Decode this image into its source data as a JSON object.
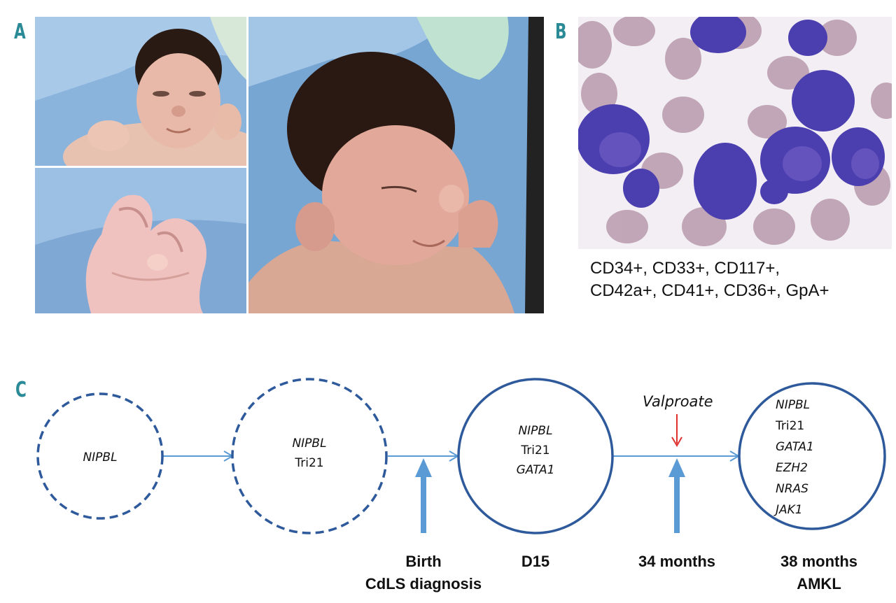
{
  "panels": {
    "a": "A",
    "b": "B",
    "c": "C"
  },
  "photo_a_top": "infant-face-photo",
  "photo_a_bottom": "infant-hand-photo",
  "photo_a_right": "infant-profile-photo",
  "photo_b": "bone-marrow-smear",
  "markers": {
    "line1": "CD34+, CD33+, CD117+,",
    "line2": "CD42a+, CD41+, CD36+, GpA+"
  },
  "timeline": {
    "circles": [
      {
        "style": "dashed",
        "lines": [
          {
            "text": "NIPBL",
            "italic": true
          }
        ]
      },
      {
        "style": "dashed",
        "lines": [
          {
            "text": "NIPBL",
            "italic": true
          },
          {
            "text": "Tri21",
            "italic": false
          }
        ]
      },
      {
        "style": "solid",
        "lines": [
          {
            "text": "NIPBL",
            "italic": true
          },
          {
            "text": "Tri21",
            "italic": false
          },
          {
            "text": "GATA1",
            "italic": true
          }
        ]
      },
      {
        "style": "solid",
        "lines": [
          {
            "text": "NIPBL",
            "italic": true
          },
          {
            "text": "Tri21",
            "italic": false
          },
          {
            "text": "GATA1",
            "italic": true
          },
          {
            "text": "EZH2",
            "italic": true
          },
          {
            "text": "NRAS",
            "italic": true
          },
          {
            "text": "JAK1",
            "italic": true
          }
        ]
      }
    ],
    "drug": "Valproate",
    "labels": {
      "birth": "Birth",
      "cdls": "CdLS diagnosis",
      "d15": "D15",
      "m34": "34 months",
      "m38": "38 months",
      "amkl": "AMKL"
    }
  },
  "colors": {
    "circle": "#2e5a9c",
    "arrow": "#5b9bd5",
    "drug_arrow": "#e03030",
    "panel_letter": "#2a8a96"
  }
}
